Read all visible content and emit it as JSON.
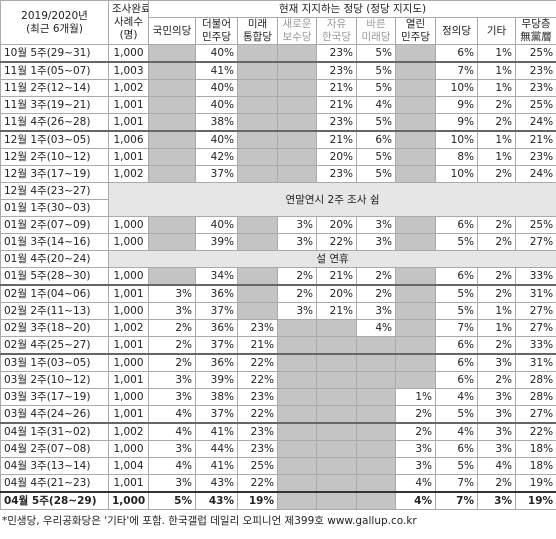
{
  "header": {
    "period": [
      "2019/2020년",
      "(최근 6개월)"
    ],
    "n": [
      "조사완료",
      "사례수",
      "(명)"
    ],
    "group": "현재 지지하는 정당 (정당 지지도)",
    "parties": [
      [
        "국민의당"
      ],
      [
        "더불어",
        "민주당"
      ],
      [
        "미래",
        "통합당"
      ],
      [
        "새로운",
        "보수당"
      ],
      [
        "자유",
        "한국당"
      ],
      [
        "바른",
        "미래당"
      ],
      [
        "열린",
        "민주당"
      ],
      [
        "정의당"
      ],
      [
        "기타"
      ],
      [
        "무당층",
        "無黨層"
      ]
    ]
  },
  "rows": [
    {
      "period": "10월 5주(29~31)",
      "n": "1,000",
      "values": [
        null,
        "40%",
        null,
        null,
        "23%",
        "5%",
        null,
        "6%",
        "1%",
        "25%"
      ]
    },
    {
      "period": "11월 1주(05~07)",
      "n": "1,003",
      "values": [
        null,
        "41%",
        null,
        null,
        "23%",
        "5%",
        null,
        "7%",
        "1%",
        "23%"
      ]
    },
    {
      "period": "11월 2주(12~14)",
      "n": "1,002",
      "values": [
        null,
        "40%",
        null,
        null,
        "21%",
        "5%",
        null,
        "10%",
        "1%",
        "23%"
      ]
    },
    {
      "period": "11월 3주(19~21)",
      "n": "1,001",
      "values": [
        null,
        "40%",
        null,
        null,
        "21%",
        "4%",
        null,
        "9%",
        "2%",
        "25%"
      ]
    },
    {
      "period": "11월 4주(26~28)",
      "n": "1,001",
      "values": [
        null,
        "38%",
        null,
        null,
        "23%",
        "5%",
        null,
        "9%",
        "2%",
        "24%"
      ]
    },
    {
      "period": "12월 1주(03~05)",
      "n": "1,006",
      "values": [
        null,
        "40%",
        null,
        null,
        "21%",
        "6%",
        null,
        "10%",
        "1%",
        "21%"
      ]
    },
    {
      "period": "12월 2주(10~12)",
      "n": "1,001",
      "values": [
        null,
        "42%",
        null,
        null,
        "20%",
        "5%",
        null,
        "8%",
        "1%",
        "23%"
      ]
    },
    {
      "period": "12월 3주(17~19)",
      "n": "1,002",
      "values": [
        null,
        "37%",
        null,
        null,
        "23%",
        "5%",
        null,
        "10%",
        "2%",
        "24%"
      ]
    },
    {
      "periods": [
        "12월 4주(23~27)",
        "01월 1주(30~03)"
      ],
      "note": "연말연시 2주 조사 쉼"
    },
    {
      "period": "01월 2주(07~09)",
      "n": "1,000",
      "values": [
        null,
        "40%",
        null,
        "3%",
        "20%",
        "3%",
        null,
        "6%",
        "2%",
        "25%"
      ]
    },
    {
      "period": "01월 3주(14~16)",
      "n": "1,000",
      "values": [
        null,
        "39%",
        null,
        "3%",
        "22%",
        "3%",
        null,
        "5%",
        "2%",
        "27%"
      ]
    },
    {
      "periods": [
        "01월 4주(20~24)"
      ],
      "note": "설 연휴"
    },
    {
      "period": "01월 5주(28~30)",
      "n": "1,000",
      "values": [
        null,
        "34%",
        null,
        "2%",
        "21%",
        "2%",
        null,
        "6%",
        "2%",
        "33%"
      ]
    },
    {
      "period": "02월 1주(04~06)",
      "n": "1,001",
      "values": [
        "3%",
        "36%",
        null,
        "2%",
        "20%",
        "2%",
        null,
        "5%",
        "2%",
        "31%"
      ]
    },
    {
      "period": "02월 2주(11~13)",
      "n": "1,000",
      "values": [
        "3%",
        "37%",
        null,
        "3%",
        "21%",
        "3%",
        null,
        "5%",
        "1%",
        "27%"
      ]
    },
    {
      "period": "02월 3주(18~20)",
      "n": "1,002",
      "values": [
        "2%",
        "36%",
        "23%",
        null,
        null,
        "4%",
        null,
        "7%",
        "1%",
        "27%"
      ]
    },
    {
      "period": "02월 4주(25~27)",
      "n": "1,001",
      "values": [
        "2%",
        "37%",
        "21%",
        null,
        null,
        null,
        null,
        "6%",
        "2%",
        "33%"
      ]
    },
    {
      "period": "03월 1주(03~05)",
      "n": "1,000",
      "values": [
        "2%",
        "36%",
        "22%",
        null,
        null,
        null,
        null,
        "6%",
        "3%",
        "31%"
      ]
    },
    {
      "period": "03월 2주(10~12)",
      "n": "1,001",
      "values": [
        "3%",
        "39%",
        "22%",
        null,
        null,
        null,
        null,
        "6%",
        "2%",
        "28%"
      ]
    },
    {
      "period": "03월 3주(17~19)",
      "n": "1,000",
      "values": [
        "3%",
        "38%",
        "23%",
        null,
        null,
        null,
        "1%",
        "4%",
        "3%",
        "28%"
      ]
    },
    {
      "period": "03월 4주(24~26)",
      "n": "1,001",
      "values": [
        "4%",
        "37%",
        "22%",
        null,
        null,
        null,
        "2%",
        "5%",
        "3%",
        "27%"
      ]
    },
    {
      "period": "04월 1주(31~02)",
      "n": "1,002",
      "values": [
        "4%",
        "41%",
        "23%",
        null,
        null,
        null,
        "2%",
        "4%",
        "3%",
        "22%"
      ]
    },
    {
      "period": "04월 2주(07~08)",
      "n": "1,000",
      "values": [
        "3%",
        "44%",
        "23%",
        null,
        null,
        null,
        "3%",
        "6%",
        "3%",
        "18%"
      ]
    },
    {
      "period": "04월 3주(13~14)",
      "n": "1,004",
      "values": [
        "4%",
        "41%",
        "25%",
        null,
        null,
        null,
        "3%",
        "5%",
        "4%",
        "18%"
      ]
    },
    {
      "period": "04월 4주(21~23)",
      "n": "1,001",
      "values": [
        "3%",
        "43%",
        "22%",
        null,
        null,
        null,
        "4%",
        "7%",
        "2%",
        "19%"
      ]
    },
    {
      "period": "04월 5주(28~29)",
      "n": "1,000",
      "values": [
        "5%",
        "43%",
        "19%",
        null,
        null,
        null,
        "4%",
        "7%",
        "3%",
        "19%"
      ]
    }
  ],
  "footnote": "*민생당, 우리공화당은 '기타'에 포함. 한국갤럽 데일리 오피니언 제399호 www.gallup.co.kr"
}
